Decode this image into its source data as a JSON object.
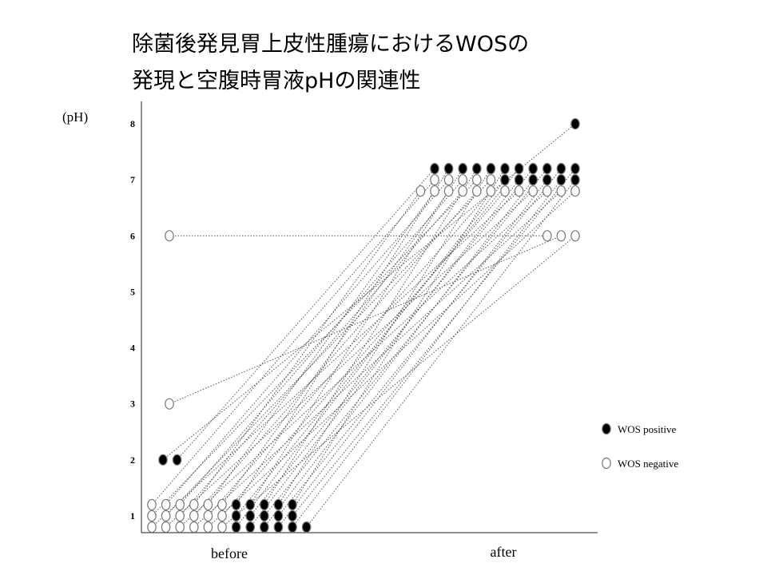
{
  "chart_data": {
    "type": "paired-dots",
    "title": [
      "除菌後発見胃上皮性腫瘍におけるWOSの",
      "発現と空腹時胃液pHの関連性"
    ],
    "y_label": "(pH)",
    "categories": [
      "before",
      "after"
    ],
    "ylim": [
      0.7,
      8.4
    ],
    "yticks": [
      1,
      2,
      3,
      4,
      5,
      6,
      7,
      8
    ],
    "series": [
      {
        "name": "WOS positive",
        "color": "#000000",
        "before": [
          2.0,
          2.0,
          1.2,
          1.2,
          1.2,
          1.2,
          1.2,
          1.0,
          1.0,
          1.0,
          1.0,
          1.0,
          0.8,
          0.8,
          0.8,
          0.8,
          0.8,
          0.8
        ],
        "after": [
          8.0,
          7.2,
          7.2,
          7.2,
          7.2,
          7.2,
          7.2,
          7.2,
          7.2,
          7.2,
          7.2,
          7.2,
          7.0,
          7.0,
          7.0,
          7.0,
          7.0,
          7.0
        ]
      },
      {
        "name": "WOS negative",
        "color": "#ffffff",
        "before": [
          1.2,
          1.2,
          1.2,
          1.0,
          1.0,
          1.2,
          1.2,
          1.2,
          1.0,
          1.0,
          1.0,
          1.0,
          0.8,
          0.8,
          0.8,
          0.8,
          0.8,
          6.0,
          3.0,
          0.8
        ],
        "after": [
          7.0,
          7.0,
          7.0,
          7.0,
          7.0,
          6.8,
          6.8,
          6.8,
          6.8,
          6.8,
          6.8,
          6.8,
          6.8,
          6.8,
          6.8,
          6.8,
          6.8,
          6.0,
          6.0,
          6.0
        ]
      }
    ]
  }
}
